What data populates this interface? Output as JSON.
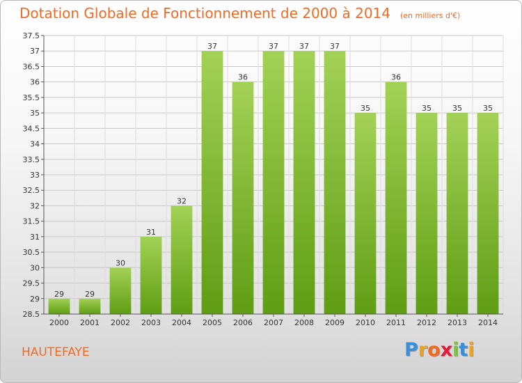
{
  "header": {
    "title": "Dotation Globale de Fonctionnement de 2000 à 2014",
    "unit": "(en milliers d'€)"
  },
  "footer": {
    "place": "HAUTEFAYE",
    "logo_letters": [
      "P",
      "r",
      "o",
      "x",
      "i",
      "t",
      "i"
    ]
  },
  "colors": {
    "title": "#f26a22",
    "bar_top": "#a3d156",
    "bar_bottom": "#5f9d14",
    "logo": [
      "#3b8fd6",
      "#f0a21e",
      "#f26a22",
      "#e21a3a",
      "#7bc142",
      "#3b8fd6",
      "#f0a21e"
    ]
  },
  "chart_data": {
    "type": "bar",
    "title": "Dotation Globale de Fonctionnement de 2000 à 2014",
    "subtitle": "(en milliers d'€)",
    "categories": [
      "2000",
      "2001",
      "2002",
      "2003",
      "2004",
      "2005",
      "2006",
      "2007",
      "2008",
      "2009",
      "2010",
      "2011",
      "2012",
      "2013",
      "2014"
    ],
    "values": [
      29,
      29,
      30,
      31,
      32,
      37,
      36,
      37,
      37,
      37,
      35,
      36,
      35,
      35,
      35
    ],
    "ylim": [
      28.5,
      37.5
    ],
    "yticks": [
      "28.5",
      "29",
      "29.5",
      "30",
      "30.5",
      "31",
      "31.5",
      "32",
      "32.5",
      "33",
      "33.5",
      "34",
      "34.5",
      "35",
      "35.5",
      "36",
      "36.5",
      "37",
      "37.5"
    ],
    "grid": true,
    "legend": "none"
  }
}
